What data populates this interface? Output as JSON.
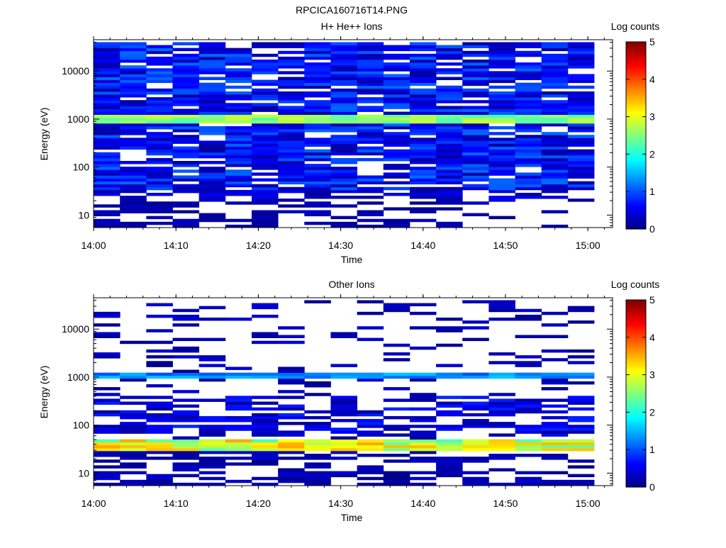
{
  "figure_title": "RPCICA160716T14.PNG",
  "chart_data": [
    {
      "type": "heatmap",
      "title": "H+ He++ Ions",
      "xlabel": "Time",
      "ylabel": "Energy (eV)",
      "x_ticks": [
        "14:00",
        "14:10",
        "14:20",
        "14:30",
        "14:40",
        "14:50",
        "15:00"
      ],
      "xlim": [
        "14:00",
        "15:03"
      ],
      "y_scale": "log",
      "ylim": [
        5.5,
        45000
      ],
      "y_ticks": [
        "10",
        "100",
        "1000",
        "10000"
      ],
      "y_tick_values": [
        10,
        100,
        1000,
        10000
      ],
      "colorbar": {
        "label": "Log counts",
        "range": [
          0,
          5
        ],
        "ticks": [
          "0",
          "1",
          "2",
          "3",
          "4",
          "5"
        ],
        "colormap": "jet"
      },
      "time_bins": 19,
      "energy_bins": 64,
      "features": {
        "main_band_energy_eV": [
          850,
          1300
        ],
        "main_band_log_counts": [
          2.2,
          2.9
        ],
        "high_energy_background_log_counts": [
          0.3,
          1.2
        ]
      }
    },
    {
      "type": "heatmap",
      "title": "Other Ions",
      "xlabel": "Time",
      "ylabel": "Energy (eV)",
      "x_ticks": [
        "14:00",
        "14:10",
        "14:20",
        "14:30",
        "14:40",
        "14:50",
        "15:00"
      ],
      "xlim": [
        "14:00",
        "15:03"
      ],
      "y_scale": "log",
      "ylim": [
        5.5,
        45000
      ],
      "y_ticks": [
        "10",
        "100",
        "1000",
        "10000"
      ],
      "y_tick_values": [
        10,
        100,
        1000,
        10000
      ],
      "colorbar": {
        "label": "Log counts",
        "range": [
          0,
          5
        ],
        "ticks": [
          "0",
          "1",
          "2",
          "3",
          "4",
          "5"
        ],
        "colormap": "jet"
      },
      "time_bins": 19,
      "energy_bins": 64,
      "features": {
        "band_1_energy_eV": [
          900,
          1250
        ],
        "band_1_log_counts": [
          1.0,
          1.6
        ],
        "band_2_energy_eV": [
          28,
          52
        ],
        "band_2_log_counts": [
          2.2,
          3.6
        ]
      }
    }
  ]
}
